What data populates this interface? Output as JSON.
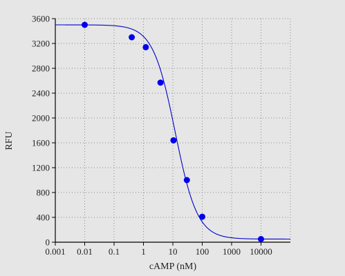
{
  "chart_data": {
    "type": "scatter",
    "title": "",
    "xlabel": "cAMP (nM)",
    "ylabel": "RFU",
    "x_scale": "log",
    "xlim": [
      0.001,
      100000
    ],
    "ylim": [
      0,
      3600
    ],
    "x_ticks": [
      0.001,
      0.01,
      0.1,
      1,
      10,
      100,
      1000,
      10000
    ],
    "x_tick_labels": [
      "0.001",
      "0.01",
      "0.1",
      "1",
      "10",
      "100",
      "1000",
      "10000"
    ],
    "y_ticks": [
      0,
      400,
      800,
      1200,
      1600,
      2000,
      2400,
      2800,
      3200,
      3600
    ],
    "y_tick_labels": [
      "0",
      "400",
      "800",
      "1200",
      "1600",
      "2000",
      "2400",
      "2800",
      "3200",
      "3600"
    ],
    "grid": true,
    "legend": "none",
    "colors": {
      "points": "#0000ee",
      "curve": "#0000cc",
      "axis": "#000000",
      "grid": "#888888"
    },
    "series": [
      {
        "x": [
          0.01,
          0.4,
          1.2,
          3.8,
          10.5,
          30,
          100,
          10000
        ],
        "y": [
          3500,
          3300,
          3140,
          2570,
          1640,
          1000,
          410,
          50
        ]
      }
    ],
    "fit": {
      "model": "4PL",
      "top": 3500,
      "bottom": 50,
      "ec50": 12,
      "hill": 1.15
    }
  }
}
